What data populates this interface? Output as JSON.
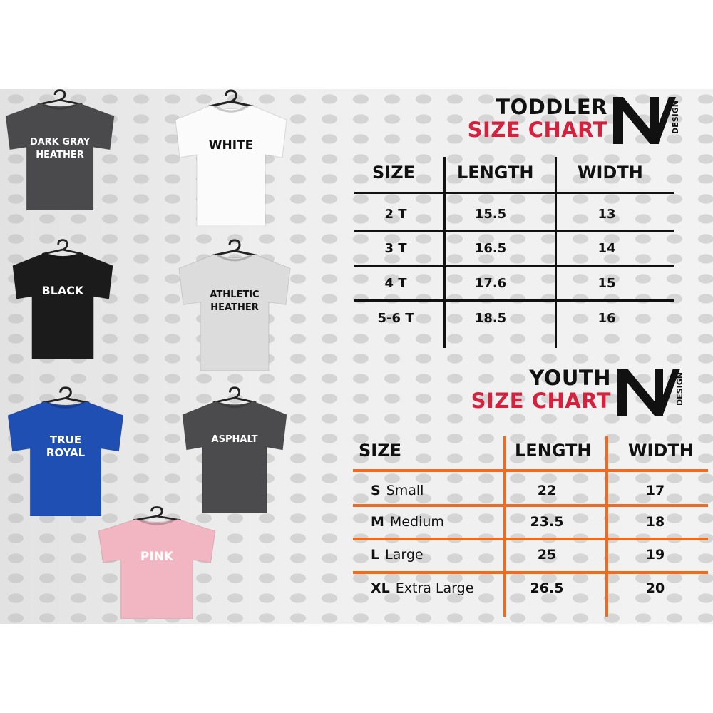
{
  "shirts": [
    {
      "label": "DARK GRAY\nHEATHER",
      "color": "#4a4a4d"
    },
    {
      "label": "WHITE",
      "color": "#fbfbfb"
    },
    {
      "label": "BLACK",
      "color": "#1b1b1b"
    },
    {
      "label": "ATHLETIC\nHEATHER",
      "color": "#dcdcdc"
    },
    {
      "label": "TRUE\nROYAL",
      "color": "#1f4fb3"
    },
    {
      "label": "ASPHALT",
      "color": "#4b4b4d"
    },
    {
      "label": "PINK",
      "color": "#f2b5c2"
    }
  ],
  "toddler": {
    "title_top": "TODDLER",
    "title_bottom": "SIZE CHART",
    "logo_text": "DESIGN",
    "headers": [
      "SIZE",
      "LENGTH",
      "WIDTH"
    ],
    "rows": [
      [
        "2 T",
        "15.5",
        "13"
      ],
      [
        "3 T",
        "16.5",
        "14"
      ],
      [
        "4 T",
        "17.6",
        "15"
      ],
      [
        "5-6 T",
        "18.5",
        "16"
      ]
    ],
    "line_color": "#111111"
  },
  "youth": {
    "title_top": "YOUTH",
    "title_bottom": "SIZE CHART",
    "logo_text": "DESIGN",
    "headers": [
      "SIZE",
      "LENGTH",
      "WIDTH"
    ],
    "rows": [
      {
        "code": "S",
        "name": "Small",
        "length": "22",
        "width": "17"
      },
      {
        "code": "M",
        "name": "Medium",
        "length": "23.5",
        "width": "18"
      },
      {
        "code": "L",
        "name": "Large",
        "length": "25",
        "width": "19"
      },
      {
        "code": "XL",
        "name": "Extra Large",
        "length": "26.5",
        "width": "20"
      }
    ],
    "line_color": "#f26a1b"
  },
  "colors": {
    "title_red": "#d4213d"
  }
}
